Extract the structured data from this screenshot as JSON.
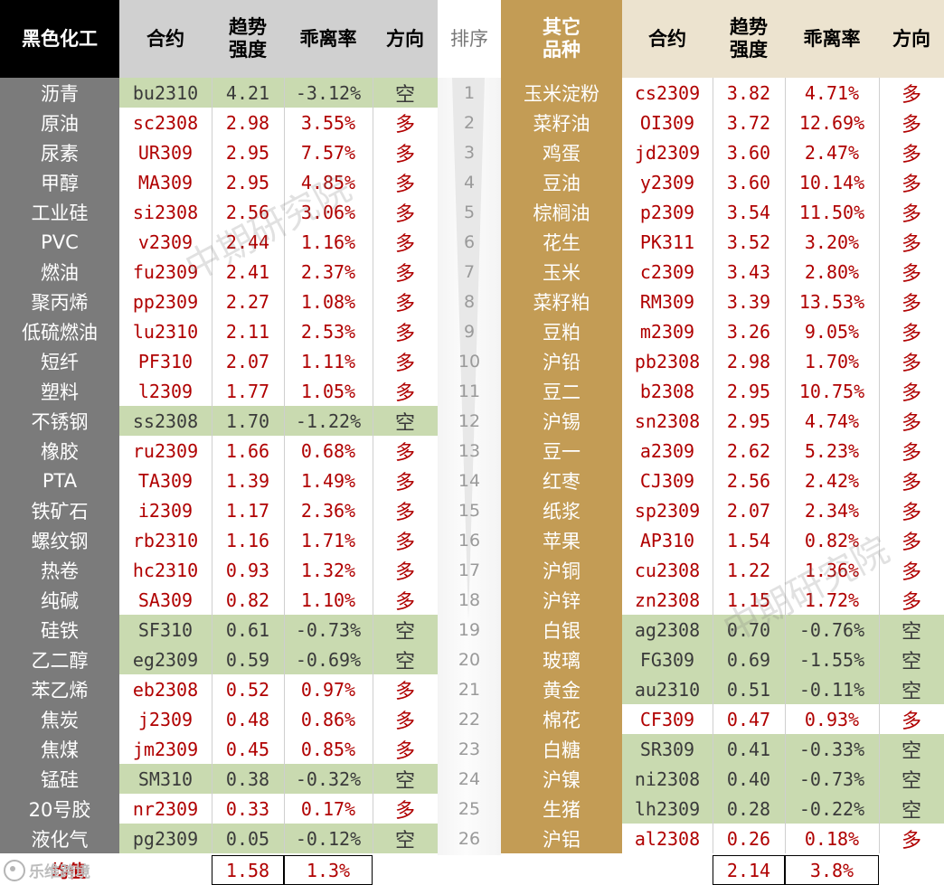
{
  "headers": {
    "left_section": "黑色化工",
    "contract": "合约",
    "trend_strength": "趋势\n强度",
    "deviation": "乖离率",
    "direction": "方向",
    "rank": "排序",
    "right_section": "其它\n品种"
  },
  "left_rows": [
    {
      "name": "沥青",
      "code": "bu2310",
      "strength": "4.21",
      "deviation": "-3.12%",
      "dir": "空",
      "short": true
    },
    {
      "name": "原油",
      "code": "sc2308",
      "strength": "2.98",
      "deviation": "3.55%",
      "dir": "多",
      "short": false
    },
    {
      "name": "尿素",
      "code": "UR309",
      "strength": "2.95",
      "deviation": "7.57%",
      "dir": "多",
      "short": false
    },
    {
      "name": "甲醇",
      "code": "MA309",
      "strength": "2.95",
      "deviation": "4.85%",
      "dir": "多",
      "short": false
    },
    {
      "name": "工业硅",
      "code": "si2308",
      "strength": "2.56",
      "deviation": "3.06%",
      "dir": "多",
      "short": false
    },
    {
      "name": "PVC",
      "code": "v2309",
      "strength": "2.44",
      "deviation": "1.16%",
      "dir": "多",
      "short": false
    },
    {
      "name": "燃油",
      "code": "fu2309",
      "strength": "2.41",
      "deviation": "2.37%",
      "dir": "多",
      "short": false
    },
    {
      "name": "聚丙烯",
      "code": "pp2309",
      "strength": "2.27",
      "deviation": "1.08%",
      "dir": "多",
      "short": false
    },
    {
      "name": "低硫燃油",
      "code": "lu2310",
      "strength": "2.11",
      "deviation": "2.53%",
      "dir": "多",
      "short": false
    },
    {
      "name": "短纤",
      "code": "PF310",
      "strength": "2.07",
      "deviation": "1.11%",
      "dir": "多",
      "short": false
    },
    {
      "name": "塑料",
      "code": "l2309",
      "strength": "1.77",
      "deviation": "1.05%",
      "dir": "多",
      "short": false
    },
    {
      "name": "不锈钢",
      "code": "ss2308",
      "strength": "1.70",
      "deviation": "-1.22%",
      "dir": "空",
      "short": true
    },
    {
      "name": "橡胶",
      "code": "ru2309",
      "strength": "1.66",
      "deviation": "0.68%",
      "dir": "多",
      "short": false
    },
    {
      "name": "PTA",
      "code": "TA309",
      "strength": "1.39",
      "deviation": "1.49%",
      "dir": "多",
      "short": false
    },
    {
      "name": "铁矿石",
      "code": "i2309",
      "strength": "1.17",
      "deviation": "2.36%",
      "dir": "多",
      "short": false
    },
    {
      "name": "螺纹钢",
      "code": "rb2310",
      "strength": "1.16",
      "deviation": "1.71%",
      "dir": "多",
      "short": false
    },
    {
      "name": "热卷",
      "code": "hc2310",
      "strength": "0.93",
      "deviation": "1.32%",
      "dir": "多",
      "short": false
    },
    {
      "name": "纯碱",
      "code": "SA309",
      "strength": "0.82",
      "deviation": "1.10%",
      "dir": "多",
      "short": false
    },
    {
      "name": "硅铁",
      "code": "SF310",
      "strength": "0.61",
      "deviation": "-0.73%",
      "dir": "空",
      "short": true
    },
    {
      "name": "乙二醇",
      "code": "eg2309",
      "strength": "0.59",
      "deviation": "-0.69%",
      "dir": "空",
      "short": true
    },
    {
      "name": "苯乙烯",
      "code": "eb2308",
      "strength": "0.52",
      "deviation": "0.97%",
      "dir": "多",
      "short": false
    },
    {
      "name": "焦炭",
      "code": "j2309",
      "strength": "0.48",
      "deviation": "0.86%",
      "dir": "多",
      "short": false
    },
    {
      "name": "焦煤",
      "code": "jm2309",
      "strength": "0.45",
      "deviation": "0.85%",
      "dir": "多",
      "short": false
    },
    {
      "name": "锰硅",
      "code": "SM310",
      "strength": "0.38",
      "deviation": "-0.32%",
      "dir": "空",
      "short": true
    },
    {
      "name": "20号胶",
      "code": "nr2309",
      "strength": "0.33",
      "deviation": "0.17%",
      "dir": "多",
      "short": false
    },
    {
      "name": "液化气",
      "code": "pg2309",
      "strength": "0.05",
      "deviation": "-0.12%",
      "dir": "空",
      "short": true
    }
  ],
  "ranks": [
    "1",
    "2",
    "3",
    "4",
    "5",
    "6",
    "7",
    "8",
    "9",
    "10",
    "11",
    "12",
    "13",
    "14",
    "15",
    "16",
    "17",
    "18",
    "19",
    "20",
    "21",
    "22",
    "23",
    "24",
    "25",
    "26"
  ],
  "right_rows": [
    {
      "name": "玉米淀粉",
      "code": "cs2309",
      "strength": "3.82",
      "deviation": "4.71%",
      "dir": "多",
      "short": false
    },
    {
      "name": "菜籽油",
      "code": "OI309",
      "strength": "3.72",
      "deviation": "12.69%",
      "dir": "多",
      "short": false
    },
    {
      "name": "鸡蛋",
      "code": "jd2309",
      "strength": "3.60",
      "deviation": "2.47%",
      "dir": "多",
      "short": false
    },
    {
      "name": "豆油",
      "code": "y2309",
      "strength": "3.60",
      "deviation": "10.14%",
      "dir": "多",
      "short": false
    },
    {
      "name": "棕榈油",
      "code": "p2309",
      "strength": "3.54",
      "deviation": "11.50%",
      "dir": "多",
      "short": false
    },
    {
      "name": "花生",
      "code": "PK311",
      "strength": "3.52",
      "deviation": "3.20%",
      "dir": "多",
      "short": false
    },
    {
      "name": "玉米",
      "code": "c2309",
      "strength": "3.43",
      "deviation": "2.80%",
      "dir": "多",
      "short": false
    },
    {
      "name": "菜籽粕",
      "code": "RM309",
      "strength": "3.39",
      "deviation": "13.53%",
      "dir": "多",
      "short": false
    },
    {
      "name": "豆粕",
      "code": "m2309",
      "strength": "3.26",
      "deviation": "9.05%",
      "dir": "多",
      "short": false
    },
    {
      "name": "沪铅",
      "code": "pb2308",
      "strength": "2.98",
      "deviation": "1.70%",
      "dir": "多",
      "short": false
    },
    {
      "name": "豆二",
      "code": "b2308",
      "strength": "2.95",
      "deviation": "10.75%",
      "dir": "多",
      "short": false
    },
    {
      "name": "沪锡",
      "code": "sn2308",
      "strength": "2.95",
      "deviation": "4.74%",
      "dir": "多",
      "short": false
    },
    {
      "name": "豆一",
      "code": "a2309",
      "strength": "2.62",
      "deviation": "5.23%",
      "dir": "多",
      "short": false
    },
    {
      "name": "红枣",
      "code": "CJ309",
      "strength": "2.56",
      "deviation": "2.42%",
      "dir": "多",
      "short": false
    },
    {
      "name": "纸浆",
      "code": "sp2309",
      "strength": "2.07",
      "deviation": "2.34%",
      "dir": "多",
      "short": false
    },
    {
      "name": "苹果",
      "code": "AP310",
      "strength": "1.54",
      "deviation": "0.82%",
      "dir": "多",
      "short": false
    },
    {
      "name": "沪铜",
      "code": "cu2308",
      "strength": "1.22",
      "deviation": "1.36%",
      "dir": "多",
      "short": false
    },
    {
      "name": "沪锌",
      "code": "zn2308",
      "strength": "1.15",
      "deviation": "1.72%",
      "dir": "多",
      "short": false
    },
    {
      "name": "白银",
      "code": "ag2308",
      "strength": "0.70",
      "deviation": "-0.76%",
      "dir": "空",
      "short": true
    },
    {
      "name": "玻璃",
      "code": "FG309",
      "strength": "0.69",
      "deviation": "-1.55%",
      "dir": "空",
      "short": true
    },
    {
      "name": "黄金",
      "code": "au2310",
      "strength": "0.51",
      "deviation": "-0.11%",
      "dir": "空",
      "short": true
    },
    {
      "name": "棉花",
      "code": "CF309",
      "strength": "0.47",
      "deviation": "0.93%",
      "dir": "多",
      "short": false
    },
    {
      "name": "白糖",
      "code": "SR309",
      "strength": "0.41",
      "deviation": "-0.33%",
      "dir": "空",
      "short": true
    },
    {
      "name": "沪镍",
      "code": "ni2308",
      "strength": "0.40",
      "deviation": "-0.73%",
      "dir": "空",
      "short": true
    },
    {
      "name": "生猪",
      "code": "lh2309",
      "strength": "0.28",
      "deviation": "-0.22%",
      "dir": "空",
      "short": true
    },
    {
      "name": "沪铝",
      "code": "al2308",
      "strength": "0.26",
      "deviation": "0.18%",
      "dir": "多",
      "short": false
    }
  ],
  "averages": {
    "label": "均值",
    "left_strength": "1.58",
    "left_deviation": "1.3%",
    "right_strength": "2.14",
    "right_deviation": "3.8%"
  },
  "watermarks": [
    "中期研究院",
    "中期研究院"
  ],
  "logo_text": "乐维跨境",
  "colors": {
    "short_highlight": "#c9dab0",
    "value_red": "#b00000",
    "left_name_bg": "#7b7b7b",
    "right_name_bg": "#c39c55",
    "header_black": "#000000"
  }
}
